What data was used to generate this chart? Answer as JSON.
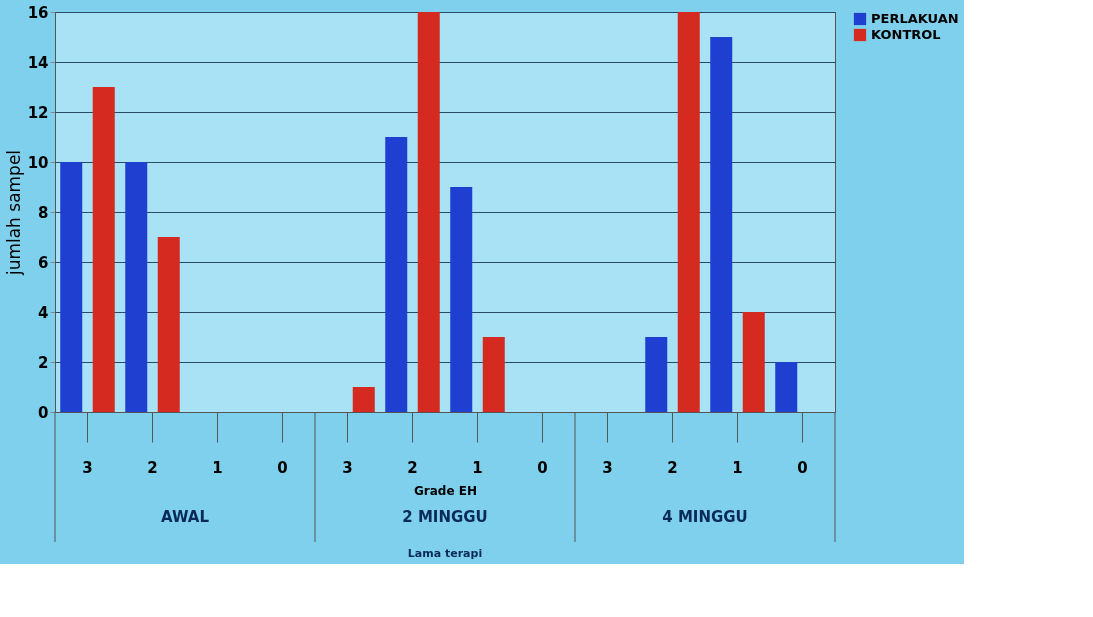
{
  "chart_data": {
    "type": "bar",
    "ylabel": "jumlah sampel",
    "xlabel": "Grade EH",
    "categories": [
      "3",
      "2",
      "1",
      "0",
      "3",
      "2",
      "1",
      "0",
      "3",
      "2",
      "1",
      "0"
    ],
    "series": [
      {
        "name": "PERLAKUAN",
        "color": "#1f3fd0",
        "values": [
          10,
          10,
          0,
          0,
          0,
          11,
          9,
          0,
          0,
          3,
          15,
          2
        ]
      },
      {
        "name": "KONTROL",
        "color": "#d42a20",
        "values": [
          13,
          7,
          0,
          0,
          1,
          16,
          3,
          0,
          0,
          16,
          4,
          0
        ]
      }
    ],
    "ylim": [
      0,
      16
    ],
    "yticks": [
      0,
      2,
      4,
      6,
      8,
      10,
      12,
      14,
      16
    ],
    "grid": "y",
    "legend": "right",
    "annotations": [
      "AWAL",
      "2 MINGGU",
      "4 MINGGU",
      "Lama terapi"
    ]
  }
}
